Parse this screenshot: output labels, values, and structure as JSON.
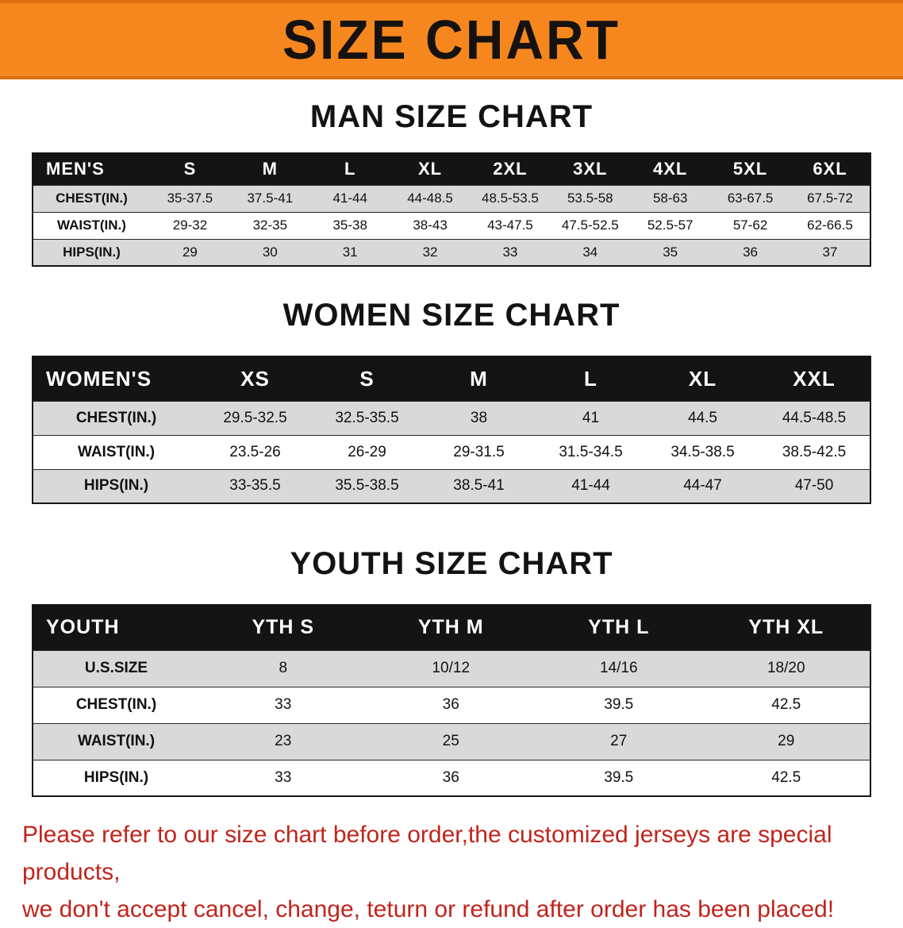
{
  "banner": {
    "title": "SIZE CHART",
    "bg_color": "#f6871f",
    "text_color": "#151210"
  },
  "tables": [
    {
      "id": "men",
      "heading": "MAN SIZE CHART",
      "header": [
        "MEN'S",
        "S",
        "M",
        "L",
        "XL",
        "2XL",
        "3XL",
        "4XL",
        "5XL",
        "6XL"
      ],
      "rows": [
        [
          "CHEST(IN.)",
          "35-37.5",
          "37.5-41",
          "41-44",
          "44-48.5",
          "48.5-53.5",
          "53.5-58",
          "58-63",
          "63-67.5",
          "67.5-72"
        ],
        [
          "WAIST(IN.)",
          "29-32",
          "32-35",
          "35-38",
          "38-43",
          "43-47.5",
          "47.5-52.5",
          "52.5-57",
          "57-62",
          "62-66.5"
        ],
        [
          "HIPS(IN.)",
          "29",
          "30",
          "31",
          "32",
          "33",
          "34",
          "35",
          "36",
          "37"
        ]
      ]
    },
    {
      "id": "women",
      "heading": "WOMEN SIZE CHART",
      "header": [
        "WOMEN'S",
        "XS",
        "S",
        "M",
        "L",
        "XL",
        "XXL"
      ],
      "rows": [
        [
          "CHEST(IN.)",
          "29.5-32.5",
          "32.5-35.5",
          "38",
          "41",
          "44.5",
          "44.5-48.5"
        ],
        [
          "WAIST(IN.)",
          "23.5-26",
          "26-29",
          "29-31.5",
          "31.5-34.5",
          "34.5-38.5",
          "38.5-42.5"
        ],
        [
          "HIPS(IN.)",
          "33-35.5",
          "35.5-38.5",
          "38.5-41",
          "41-44",
          "44-47",
          "47-50"
        ]
      ]
    },
    {
      "id": "youth",
      "heading": "YOUTH SIZE CHART",
      "header": [
        "YOUTH",
        "YTH S",
        "YTH M",
        "YTH L",
        "YTH XL"
      ],
      "rows": [
        [
          "U.S.SIZE",
          "8",
          "10/12",
          "14/16",
          "18/20"
        ],
        [
          "CHEST(IN.)",
          "33",
          "36",
          "39.5",
          "42.5"
        ],
        [
          "WAIST(IN.)",
          "23",
          "25",
          "27",
          "29"
        ],
        [
          "HIPS(IN.)",
          "33",
          "36",
          "39.5",
          "42.5"
        ]
      ]
    }
  ],
  "footer": {
    "line1": "Please refer to our size chart before order,the customized jerseys are special products,",
    "line2": "we don't accept cancel, change, teturn or refund after order has been placed!",
    "text_color": "#c0241c"
  }
}
